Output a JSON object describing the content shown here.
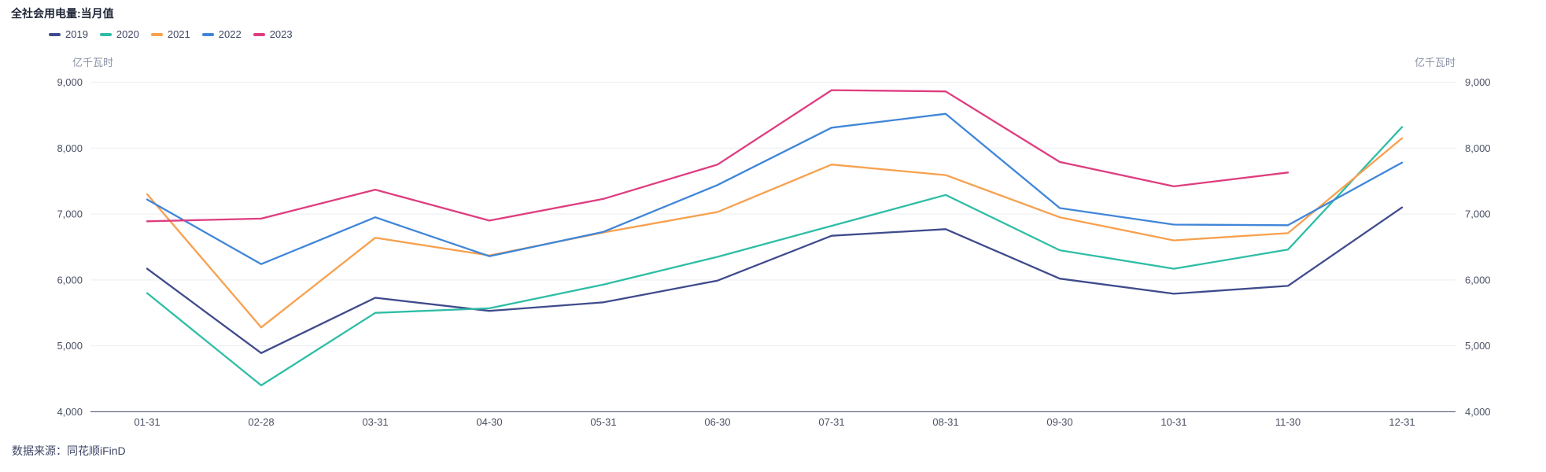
{
  "title": "全社会用电量:当月值",
  "units": {
    "left": "亿千瓦时",
    "right": "亿千瓦时"
  },
  "source": "数据来源：同花顺iFinD",
  "chart_data": {
    "type": "line",
    "title": "全社会用电量:当月值",
    "ylabel": "亿千瓦时",
    "ylim": [
      4000,
      9000
    ],
    "ytick_interval": 1000,
    "grid": true,
    "legend_position": "top-left",
    "categories": [
      "01-31",
      "02-28",
      "03-31",
      "04-30",
      "05-31",
      "06-30",
      "07-31",
      "08-31",
      "09-30",
      "10-31",
      "11-30",
      "12-31"
    ],
    "series": [
      {
        "name": "2019",
        "color": "#3f4b8c",
        "values": [
          6170,
          4890,
          5730,
          5530,
          5660,
          5990,
          6670,
          6770,
          6020,
          5790,
          5910,
          7100
        ]
      },
      {
        "name": "2020",
        "color": "#2ebda6",
        "values": [
          5800,
          4400,
          5500,
          5570,
          5930,
          6350,
          6820,
          7290,
          6450,
          6170,
          6460,
          8320
        ]
      },
      {
        "name": "2021",
        "color": "#f7a04e",
        "values": [
          7300,
          5280,
          6640,
          6370,
          6720,
          7030,
          7750,
          7590,
          6950,
          6600,
          6710,
          8150
        ]
      },
      {
        "name": "2022",
        "color": "#4086d8",
        "values": [
          7220,
          6240,
          6950,
          6360,
          6730,
          7440,
          8310,
          8520,
          7090,
          6840,
          6830,
          7780
        ]
      },
      {
        "name": "2023",
        "color": "#de3d7f",
        "values": [
          6890,
          6930,
          7370,
          6900,
          7230,
          7750,
          8880,
          8860,
          7790,
          7420,
          7630,
          null
        ]
      }
    ],
    "axis_colors": {
      "gridline": "#ebedf2",
      "axis_line": "#3f4560",
      "tick_label": "#4a5064"
    }
  }
}
